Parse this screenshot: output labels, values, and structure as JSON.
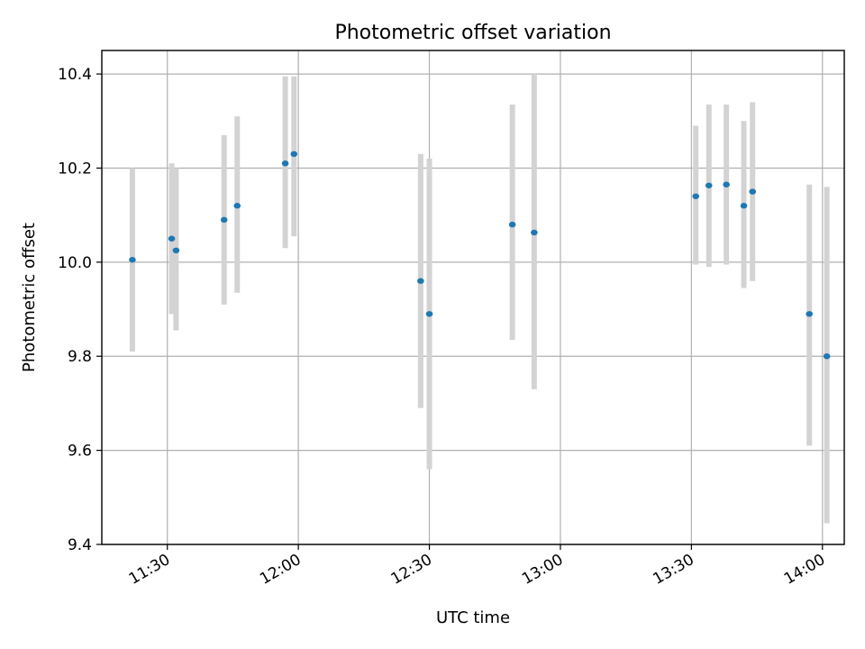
{
  "chart_data": {
    "type": "scatter",
    "title": "Photometric offset variation",
    "xlabel": "UTC time",
    "ylabel": "Photometric offset",
    "x_axis": "time",
    "xlim": [
      "11:15",
      "14:05"
    ],
    "ylim": [
      9.4,
      10.45
    ],
    "x_ticks": [
      "11:30",
      "12:00",
      "12:30",
      "13:00",
      "13:30",
      "14:00"
    ],
    "y_ticks": [
      9.4,
      9.6,
      9.8,
      10.0,
      10.2,
      10.4
    ],
    "y_tick_labels": [
      "9.4",
      "9.6",
      "9.8",
      "10.0",
      "10.2",
      "10.4"
    ],
    "grid": true,
    "marker_color": "#1f77b4",
    "errorbar_color": "#d3d3d3",
    "points": [
      {
        "x": "11:22",
        "y": 10.005,
        "err_low": 9.81,
        "err_high": 10.2
      },
      {
        "x": "11:31",
        "y": 10.05,
        "err_low": 9.89,
        "err_high": 10.21
      },
      {
        "x": "11:32",
        "y": 10.025,
        "err_low": 9.855,
        "err_high": 10.2
      },
      {
        "x": "11:43",
        "y": 10.09,
        "err_low": 9.91,
        "err_high": 10.27
      },
      {
        "x": "11:46",
        "y": 10.12,
        "err_low": 9.935,
        "err_high": 10.31
      },
      {
        "x": "11:57",
        "y": 10.21,
        "err_low": 10.03,
        "err_high": 10.395
      },
      {
        "x": "11:59",
        "y": 10.23,
        "err_low": 10.055,
        "err_high": 10.395
      },
      {
        "x": "12:28",
        "y": 9.96,
        "err_low": 9.69,
        "err_high": 10.23
      },
      {
        "x": "12:30",
        "y": 9.89,
        "err_low": 9.56,
        "err_high": 10.22
      },
      {
        "x": "12:49",
        "y": 10.08,
        "err_low": 9.835,
        "err_high": 10.335
      },
      {
        "x": "12:54",
        "y": 10.063,
        "err_low": 9.73,
        "err_high": 10.4
      },
      {
        "x": "13:31",
        "y": 10.14,
        "err_low": 9.995,
        "err_high": 10.29
      },
      {
        "x": "13:34",
        "y": 10.163,
        "err_low": 9.99,
        "err_high": 10.335
      },
      {
        "x": "13:38",
        "y": 10.165,
        "err_low": 9.995,
        "err_high": 10.335
      },
      {
        "x": "13:42",
        "y": 10.12,
        "err_low": 9.945,
        "err_high": 10.3
      },
      {
        "x": "13:44",
        "y": 10.15,
        "err_low": 9.96,
        "err_high": 10.34
      },
      {
        "x": "13:57",
        "y": 9.89,
        "err_low": 9.61,
        "err_high": 10.165
      },
      {
        "x": "14:01",
        "y": 9.8,
        "err_low": 9.445,
        "err_high": 10.16
      }
    ]
  }
}
